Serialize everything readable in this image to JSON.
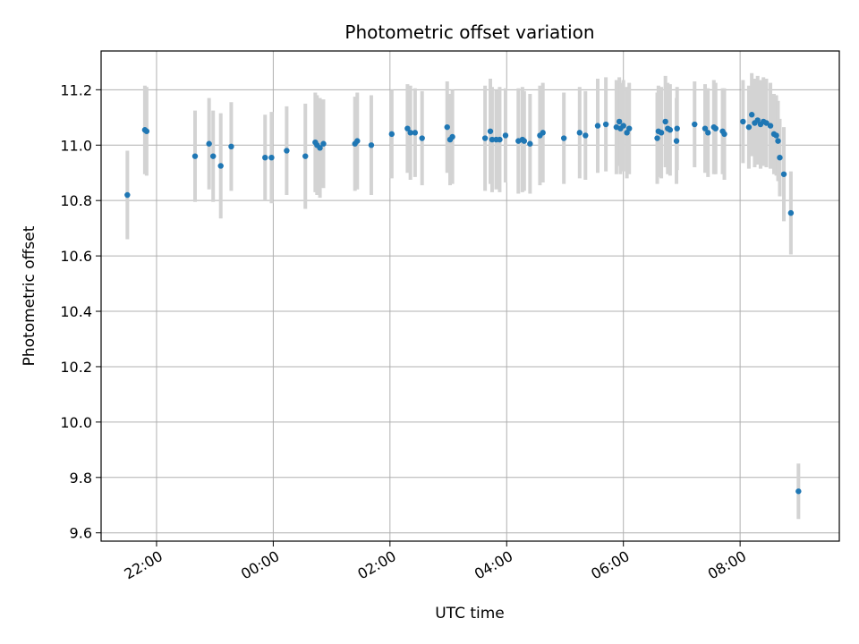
{
  "chart_data": {
    "type": "scatter",
    "title": "Photometric offset variation",
    "xlabel": "UTC time",
    "ylabel": "Photometric offset",
    "x_unit": "hours after 00:00 UTC (negative = previous day)",
    "xlim": [
      -2.95,
      9.7
    ],
    "ylim": [
      9.57,
      11.34
    ],
    "x_ticks": [
      -2,
      0,
      2,
      4,
      6,
      8
    ],
    "x_tick_labels": [
      "22:00",
      "00:00",
      "02:00",
      "04:00",
      "06:00",
      "08:00"
    ],
    "y_ticks": [
      9.6,
      9.8,
      10.0,
      10.2,
      10.4,
      10.6,
      10.8,
      11.0,
      11.2
    ],
    "y_tick_labels": [
      "9.6",
      "9.8",
      "10.0",
      "10.2",
      "10.4",
      "10.6",
      "10.8",
      "11.0",
      "11.2"
    ],
    "grid": true,
    "marker_color": "#1f77b4",
    "errorbar_color": "#d3d3d3",
    "points": [
      [
        -2.5,
        10.82,
        0.16
      ],
      [
        -2.2,
        11.055,
        0.16
      ],
      [
        -2.17,
        11.05,
        0.16
      ],
      [
        -1.34,
        10.96,
        0.165
      ],
      [
        -1.1,
        11.005,
        0.165
      ],
      [
        -1.03,
        10.96,
        0.165
      ],
      [
        -0.9,
        10.925,
        0.19
      ],
      [
        -0.72,
        10.995,
        0.16
      ],
      [
        -0.14,
        10.955,
        0.155
      ],
      [
        -0.03,
        10.955,
        0.165
      ],
      [
        0.23,
        10.98,
        0.16
      ],
      [
        0.55,
        10.96,
        0.19
      ],
      [
        0.72,
        11.01,
        0.18
      ],
      [
        0.75,
        11.0,
        0.18
      ],
      [
        0.8,
        10.99,
        0.18
      ],
      [
        0.86,
        11.005,
        0.16
      ],
      [
        1.4,
        11.005,
        0.17
      ],
      [
        1.44,
        11.015,
        0.175
      ],
      [
        1.68,
        11.0,
        0.18
      ],
      [
        2.03,
        11.04,
        0.16
      ],
      [
        2.3,
        11.06,
        0.16
      ],
      [
        2.35,
        11.045,
        0.17
      ],
      [
        2.43,
        11.045,
        0.16
      ],
      [
        2.55,
        11.025,
        0.17
      ],
      [
        2.98,
        11.065,
        0.165
      ],
      [
        3.03,
        11.02,
        0.165
      ],
      [
        3.07,
        11.03,
        0.17
      ],
      [
        3.63,
        11.025,
        0.19
      ],
      [
        3.72,
        11.05,
        0.19
      ],
      [
        3.75,
        11.02,
        0.19
      ],
      [
        3.82,
        11.02,
        0.18
      ],
      [
        3.88,
        11.02,
        0.19
      ],
      [
        3.98,
        11.035,
        0.17
      ],
      [
        4.2,
        11.015,
        0.19
      ],
      [
        4.27,
        11.02,
        0.19
      ],
      [
        4.3,
        11.015,
        0.18
      ],
      [
        4.4,
        11.005,
        0.18
      ],
      [
        4.57,
        11.035,
        0.18
      ],
      [
        4.62,
        11.045,
        0.18
      ],
      [
        4.98,
        11.025,
        0.165
      ],
      [
        5.25,
        11.045,
        0.165
      ],
      [
        5.35,
        11.035,
        0.16
      ],
      [
        5.56,
        11.07,
        0.17
      ],
      [
        5.7,
        11.075,
        0.17
      ],
      [
        5.88,
        11.065,
        0.17
      ],
      [
        5.93,
        11.085,
        0.16
      ],
      [
        5.95,
        11.06,
        0.165
      ],
      [
        6.0,
        11.07,
        0.165
      ],
      [
        6.06,
        11.045,
        0.165
      ],
      [
        6.1,
        11.06,
        0.165
      ],
      [
        6.58,
        11.025,
        0.165
      ],
      [
        6.6,
        11.05,
        0.165
      ],
      [
        6.65,
        11.045,
        0.165
      ],
      [
        6.72,
        11.085,
        0.165
      ],
      [
        6.76,
        11.06,
        0.165
      ],
      [
        6.8,
        11.055,
        0.165
      ],
      [
        6.91,
        11.015,
        0.155
      ],
      [
        6.92,
        11.06,
        0.15
      ],
      [
        7.22,
        11.075,
        0.155
      ],
      [
        7.4,
        11.06,
        0.16
      ],
      [
        7.45,
        11.045,
        0.16
      ],
      [
        7.55,
        11.065,
        0.17
      ],
      [
        7.58,
        11.06,
        0.165
      ],
      [
        7.7,
        11.05,
        0.155
      ],
      [
        7.73,
        11.04,
        0.165
      ],
      [
        8.05,
        11.085,
        0.15
      ],
      [
        8.15,
        11.065,
        0.15
      ],
      [
        8.2,
        11.11,
        0.15
      ],
      [
        8.25,
        11.08,
        0.16
      ],
      [
        8.3,
        11.09,
        0.16
      ],
      [
        8.35,
        11.075,
        0.16
      ],
      [
        8.4,
        11.085,
        0.16
      ],
      [
        8.45,
        11.08,
        0.16
      ],
      [
        8.52,
        11.07,
        0.155
      ],
      [
        8.58,
        11.04,
        0.145
      ],
      [
        8.62,
        11.035,
        0.145
      ],
      [
        8.65,
        11.015,
        0.145
      ],
      [
        8.68,
        10.955,
        0.14
      ],
      [
        8.75,
        10.895,
        0.17
      ],
      [
        8.87,
        10.755,
        0.15
      ],
      [
        9.0,
        9.75,
        0.1
      ]
    ]
  }
}
